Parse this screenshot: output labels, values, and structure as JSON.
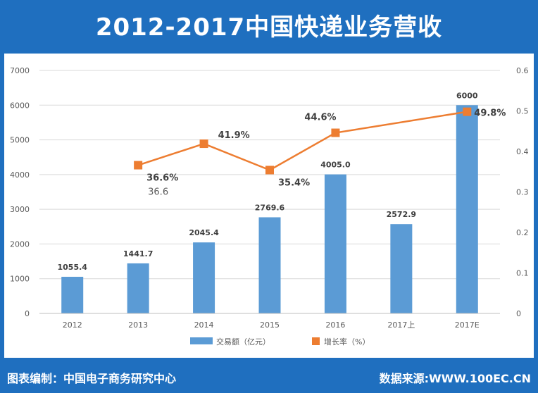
{
  "title": "2012-2017中国快递业务营收",
  "footer": {
    "left": "图表编制：中国电子商务研究中心",
    "right": "数据来源:WWW.100EC.CN"
  },
  "colors": {
    "bar": "#5b9bd5",
    "line": "#ed7d31",
    "frame": "#1f6fbf",
    "grid": "#d9d9d9",
    "axis_text": "#595959"
  },
  "chart_data": {
    "type": "bar",
    "categories": [
      "2012",
      "2013",
      "2014",
      "2015",
      "2016",
      "2017上",
      "2017E"
    ],
    "series": [
      {
        "name": "交易额（亿元）",
        "type": "bar",
        "axis": "left",
        "values": [
          1055.4,
          1441.7,
          2045.4,
          2769.6,
          4005.0,
          2572.9,
          6000
        ],
        "labels": [
          "1055.4",
          "1441.7",
          "2045.4",
          "2769.6",
          "4005.0",
          "2572.9",
          "6000"
        ]
      },
      {
        "name": "增长率（%）",
        "type": "line",
        "axis": "right",
        "values": [
          null,
          0.366,
          0.419,
          0.354,
          0.446,
          null,
          0.498
        ],
        "labels": [
          null,
          "36.6%",
          "41.9%",
          "35.4%",
          "44.6%",
          null,
          "49.8%"
        ]
      }
    ],
    "annotations": [
      {
        "text": "36.6",
        "category": "2013"
      }
    ],
    "y_left": {
      "min": 0,
      "max": 7000,
      "ticks": [
        "0",
        "1000",
        "2000",
        "3000",
        "4000",
        "5000",
        "6000",
        "7000"
      ]
    },
    "y_right": {
      "min": 0,
      "max": 0.6,
      "ticks": [
        "0",
        "0.1",
        "0.2",
        "0.3",
        "0.4",
        "0.5",
        "0.6"
      ]
    },
    "grid": true,
    "legend_position": "bottom"
  }
}
